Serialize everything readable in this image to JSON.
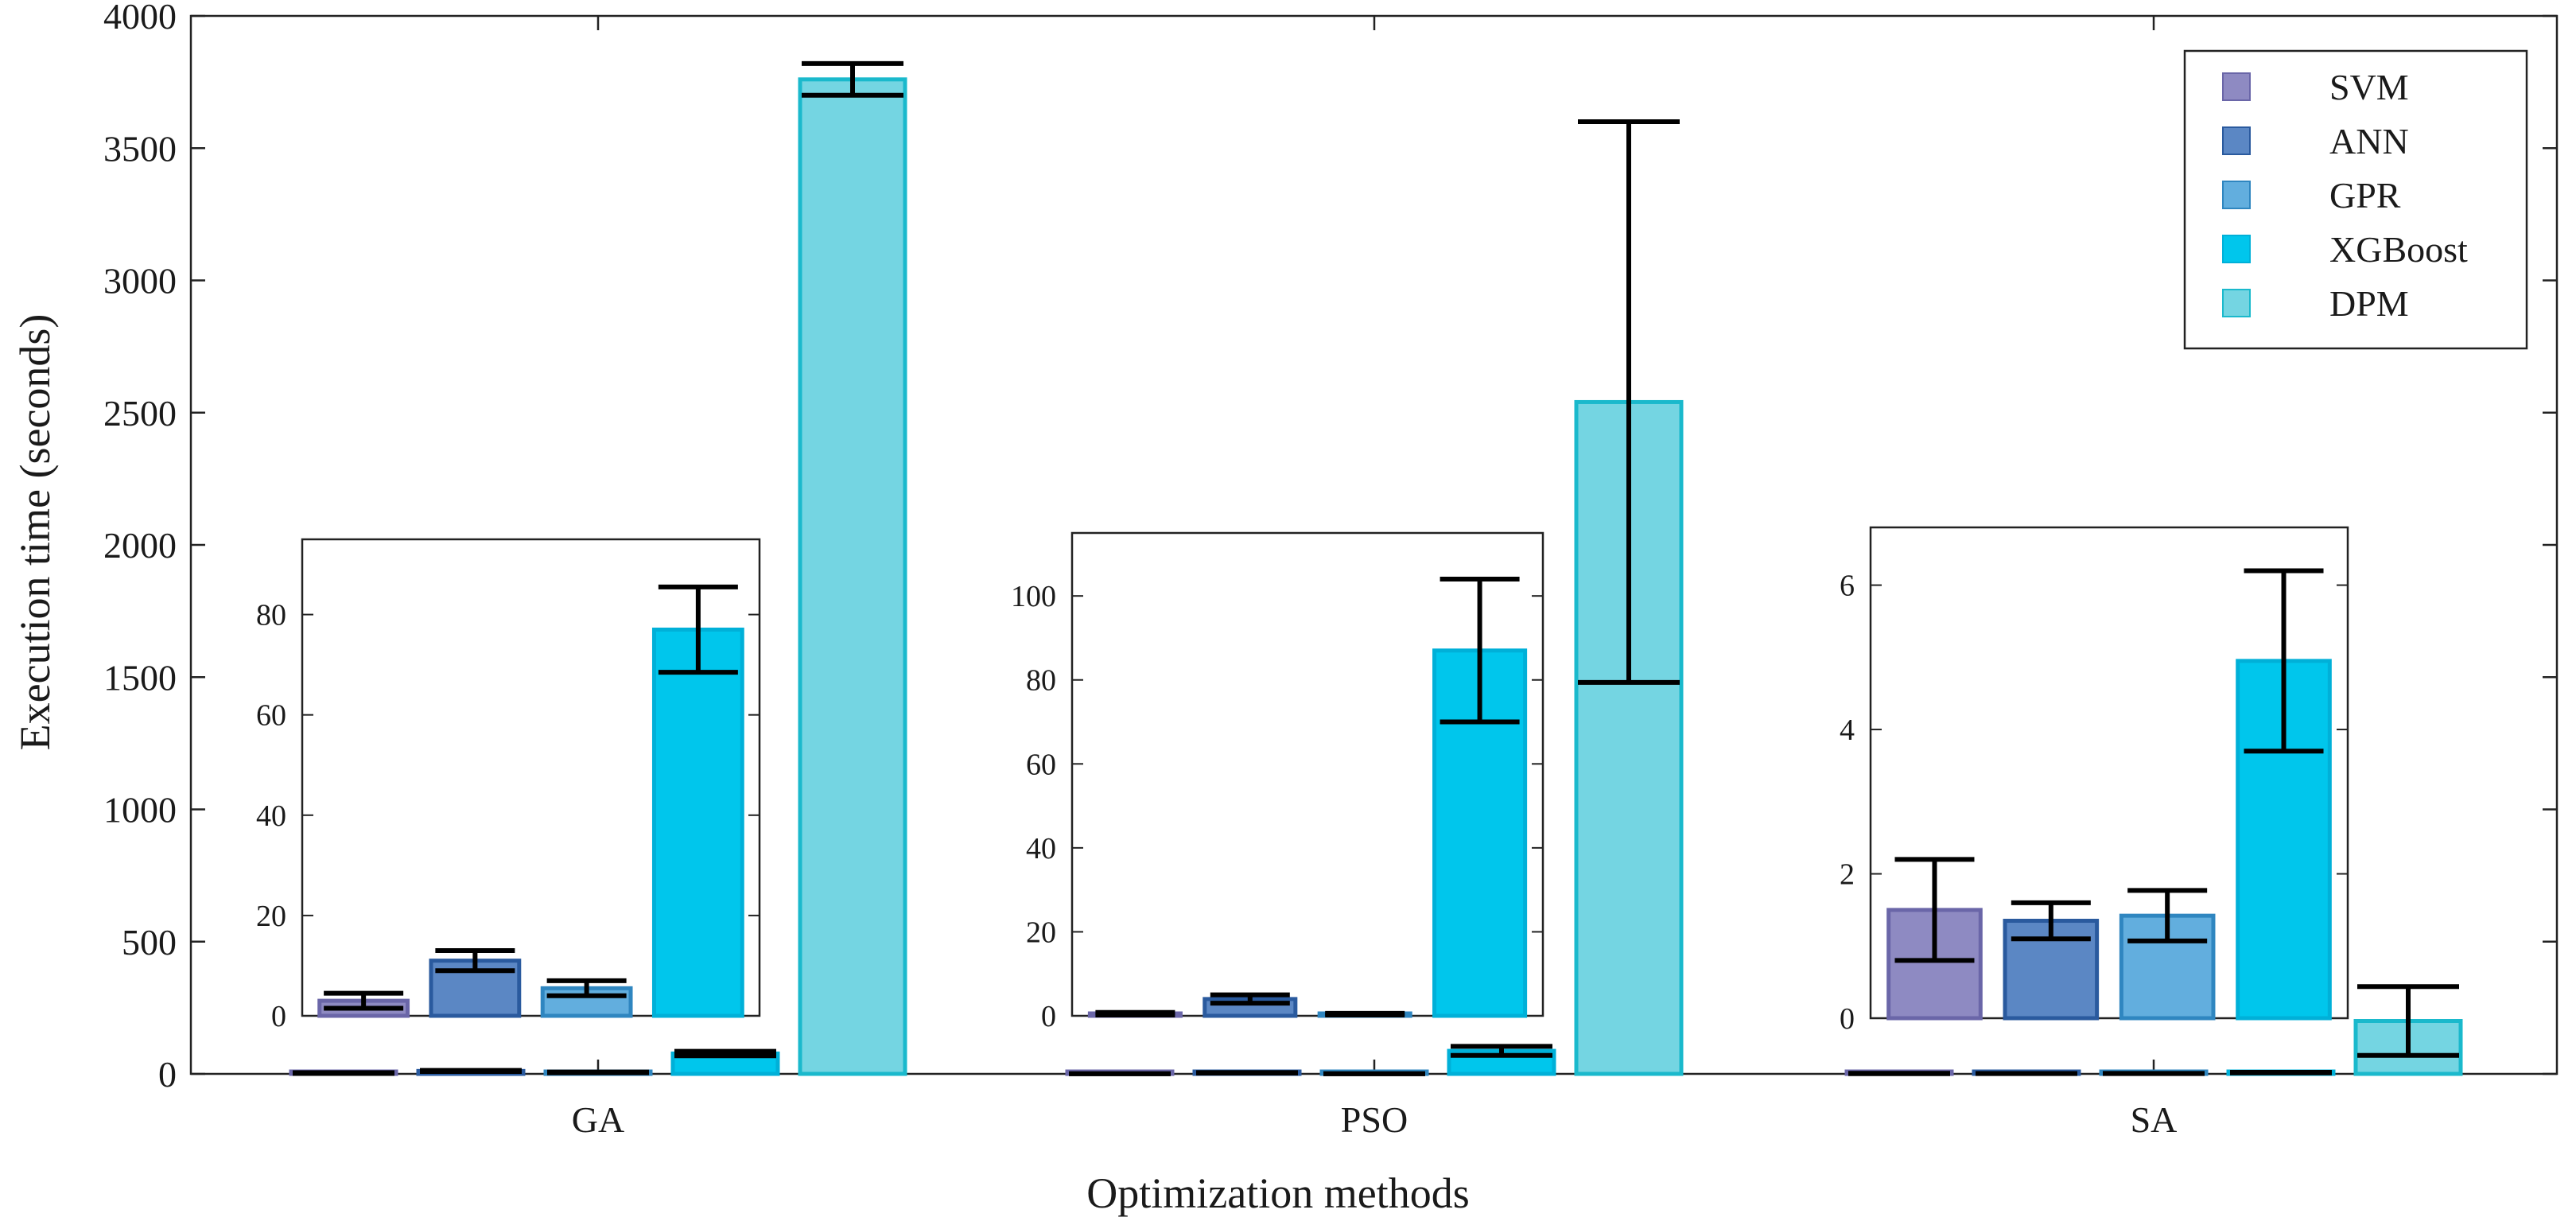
{
  "chart_data": {
    "type": "bar",
    "xlabel": "Optimization methods",
    "ylabel": "Execution time (seconds)",
    "ylim": [
      0,
      4000
    ],
    "yticks": [
      0,
      500,
      1000,
      1500,
      2000,
      2500,
      3000,
      3500,
      4000
    ],
    "categories": [
      "GA",
      "PSO",
      "SA"
    ],
    "legend_position": "top-right",
    "series": [
      {
        "name": "SVM",
        "color": "#8e8ac2",
        "edge": "#6a66a8",
        "values": [
          3,
          0.5,
          1.5
        ],
        "errors": [
          1.5,
          0.3,
          0.7
        ]
      },
      {
        "name": "ANN",
        "color": "#5b87c4",
        "edge": "#2a5a9e",
        "values": [
          11,
          4,
          1.35
        ],
        "errors": [
          2,
          1,
          0.25
        ]
      },
      {
        "name": "GPR",
        "color": "#62aede",
        "edge": "#2f86c0",
        "values": [
          5.5,
          0.4,
          1.42
        ],
        "errors": [
          1.5,
          0.2,
          0.35
        ]
      },
      {
        "name": "XGBoost",
        "color": "#00c6ec",
        "edge": "#00b0d8",
        "values": [
          77,
          87,
          4.95
        ],
        "errors": [
          8.5,
          17,
          1.25
        ]
      },
      {
        "name": "DPM",
        "color": "#74d5e2",
        "edge": "#1ab9cc",
        "values": [
          3760,
          2540,
          200
        ],
        "errors": [
          60,
          1060,
          130
        ]
      }
    ],
    "insets": [
      {
        "category": "GA",
        "ylim": [
          0,
          95
        ],
        "yticks": [
          0,
          20,
          40,
          60,
          80
        ]
      },
      {
        "category": "PSO",
        "ylim": [
          0,
          115
        ],
        "yticks": [
          0,
          20,
          40,
          60,
          80,
          100
        ]
      },
      {
        "category": "SA",
        "ylim": [
          0,
          6.8
        ],
        "yticks": [
          0,
          2,
          4,
          6
        ]
      }
    ]
  }
}
